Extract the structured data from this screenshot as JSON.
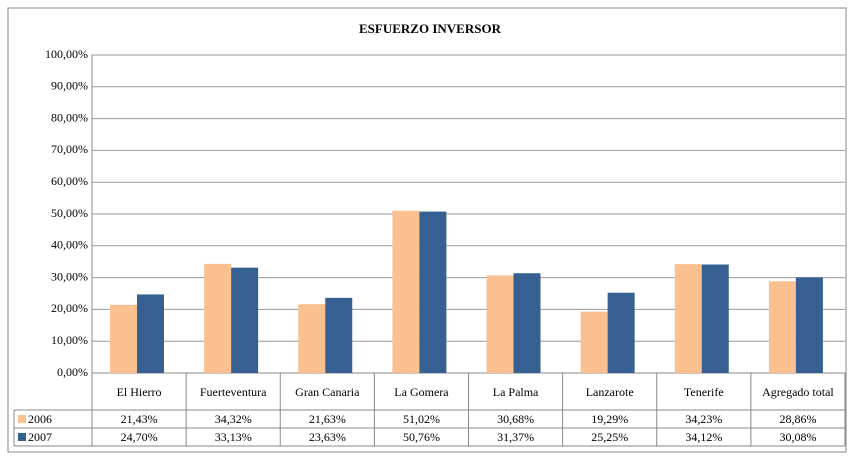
{
  "chart_data": {
    "type": "bar",
    "title": "ESFUERZO INVERSOR",
    "categories": [
      "El Hierro",
      "Fuerteventura",
      "Gran Canaria",
      "La Gomera",
      "La Palma",
      "Lanzarote",
      "Tenerife",
      "Agregado total"
    ],
    "series": [
      {
        "name": "2006",
        "color": "#FAC090",
        "values": [
          21.43,
          34.32,
          21.63,
          51.02,
          30.68,
          19.29,
          34.23,
          28.86
        ],
        "value_labels": [
          "21,43%",
          "34,32%",
          "21,63%",
          "51,02%",
          "30,68%",
          "19,29%",
          "34,23%",
          "28,86%"
        ]
      },
      {
        "name": "2007",
        "color": "#376092",
        "values": [
          24.7,
          33.13,
          23.63,
          50.76,
          31.37,
          25.25,
          34.12,
          30.08
        ],
        "value_labels": [
          "24,70%",
          "33,13%",
          "23,63%",
          "50,76%",
          "31,37%",
          "25,25%",
          "34,12%",
          "30,08%"
        ]
      }
    ],
    "ylim": [
      0,
      100
    ],
    "yticks": [
      {
        "value": 0,
        "label": "0,00%"
      },
      {
        "value": 10,
        "label": "10,00%"
      },
      {
        "value": 20,
        "label": "20,00%"
      },
      {
        "value": 30,
        "label": "30,00%"
      },
      {
        "value": 40,
        "label": "40,00%"
      },
      {
        "value": 50,
        "label": "50,00%"
      },
      {
        "value": 60,
        "label": "60,00%"
      },
      {
        "value": 70,
        "label": "70,00%"
      },
      {
        "value": 80,
        "label": "80,00%"
      },
      {
        "value": 90,
        "label": "90,00%"
      },
      {
        "value": 100,
        "label": "100,00%"
      }
    ],
    "grid": true
  }
}
